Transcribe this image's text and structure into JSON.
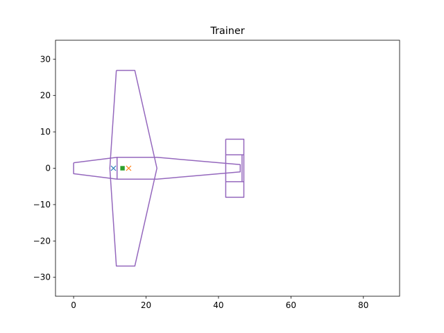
{
  "chart_data": {
    "type": "line",
    "title": "Trainer",
    "xlabel": "",
    "ylabel": "",
    "xlim": [
      -5,
      90
    ],
    "ylim": [
      -35.2,
      35.2
    ],
    "xticks": [
      0,
      20,
      40,
      60,
      80
    ],
    "yticks": [
      -30,
      -20,
      -10,
      0,
      10,
      20,
      30
    ],
    "xtick_labels": [
      "0",
      "20",
      "40",
      "60",
      "80"
    ],
    "ytick_labels": [
      "−30",
      "−20",
      "−10",
      "0",
      "10",
      "20",
      "30"
    ],
    "grid": false,
    "colors": {
      "outline": "#9467bd",
      "marker_x_blue": "#1f77b4",
      "marker_x_orange": "#ff7f0e",
      "marker_square_green": "#2ca02c"
    },
    "outlines": [
      {
        "part": "fuselage",
        "points": [
          [
            0,
            1.5
          ],
          [
            12,
            3
          ],
          [
            23,
            3
          ],
          [
            46,
            1
          ],
          [
            46,
            -1
          ],
          [
            23,
            -3
          ],
          [
            12,
            -3
          ],
          [
            0,
            -1.5
          ],
          [
            0,
            1.5
          ]
        ]
      },
      {
        "part": "wing",
        "points": [
          [
            11.8,
            26.9
          ],
          [
            16.9,
            26.9
          ],
          [
            23,
            0
          ],
          [
            16.9,
            -26.9
          ],
          [
            11.8,
            -26.9
          ],
          [
            10,
            0
          ],
          [
            11.8,
            26.9
          ]
        ]
      },
      {
        "part": "wing-root",
        "points": [
          [
            12,
            3
          ],
          [
            12,
            -3
          ]
        ]
      },
      {
        "part": "horizontal-tail",
        "points": [
          [
            42,
            8
          ],
          [
            47,
            8
          ],
          [
            47,
            -8
          ],
          [
            42,
            -8
          ],
          [
            42,
            8
          ]
        ]
      },
      {
        "part": "elevator-hinge-upper",
        "points": [
          [
            42,
            3.7
          ],
          [
            47,
            3.7
          ]
        ]
      },
      {
        "part": "elevator-hinge-lower",
        "points": [
          [
            42,
            -3.7
          ],
          [
            47,
            -3.7
          ]
        ]
      },
      {
        "part": "elevator-inner",
        "points": [
          [
            46.5,
            3.7
          ],
          [
            46.5,
            -3.7
          ]
        ]
      }
    ],
    "markers": [
      {
        "shape": "x",
        "x": 11,
        "y": 0,
        "color": "#1f77b4"
      },
      {
        "shape": "x",
        "x": 15.2,
        "y": 0,
        "color": "#ff7f0e"
      },
      {
        "shape": "square",
        "x": 13.5,
        "y": 0,
        "color": "#2ca02c"
      }
    ]
  }
}
